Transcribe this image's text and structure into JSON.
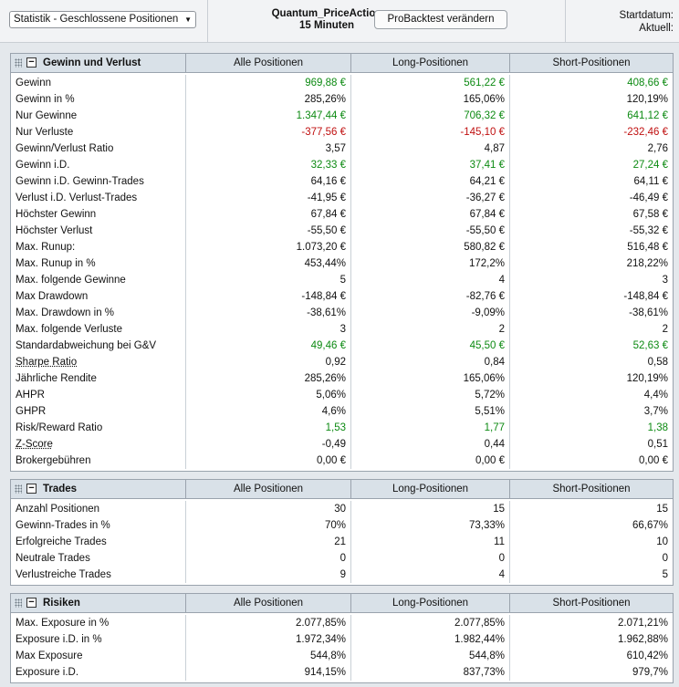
{
  "toolbar": {
    "select_value": "Statistik - Geschlossene Positionen",
    "strategy_name": "Quantum_PriceAction",
    "timeframe": "15 Minuten",
    "button_label": "ProBacktest verändern",
    "start_label": "Startdatum:",
    "current_label": "Aktuell:"
  },
  "colors": {
    "positive": "#0c8a12",
    "negative": "#c01010",
    "header_bg": "#d9e1e8"
  },
  "icons": {
    "grip": "grip-icon",
    "collapse": "collapse-minus-icon",
    "dropdown": "chevron-down-icon"
  },
  "panels": [
    {
      "title": "Gewinn und Verlust",
      "columns": [
        "Alle Positionen",
        "Long-Positionen",
        "Short-Positionen"
      ],
      "rows": [
        {
          "label": "Gewinn",
          "values": [
            "969,88 €",
            "561,22 €",
            "408,66 €"
          ],
          "tone": "pos"
        },
        {
          "label": "Gewinn in %",
          "values": [
            "285,26%",
            "165,06%",
            "120,19%"
          ]
        },
        {
          "label": "Nur Gewinne",
          "values": [
            "1.347,44 €",
            "706,32 €",
            "641,12 €"
          ],
          "tone": "pos"
        },
        {
          "label": "Nur Verluste",
          "values": [
            "-377,56 €",
            "-145,10 €",
            "-232,46 €"
          ],
          "tone": "neg"
        },
        {
          "label": "Gewinn/Verlust Ratio",
          "values": [
            "3,57",
            "4,87",
            "2,76"
          ]
        },
        {
          "label": "Gewinn i.D.",
          "values": [
            "32,33 €",
            "37,41 €",
            "27,24 €"
          ],
          "tone": "pos"
        },
        {
          "label": "Gewinn i.D. Gewinn-Trades",
          "values": [
            "64,16 €",
            "64,21 €",
            "64,11 €"
          ]
        },
        {
          "label": "Verlust i.D. Verlust-Trades",
          "values": [
            "-41,95 €",
            "-36,27 €",
            "-46,49 €"
          ]
        },
        {
          "label": "Höchster Gewinn",
          "values": [
            "67,84 €",
            "67,84 €",
            "67,58 €"
          ]
        },
        {
          "label": "Höchster Verlust",
          "values": [
            "-55,50 €",
            "-55,50 €",
            "-55,32 €"
          ]
        },
        {
          "label": "Max. Runup:",
          "values": [
            "1.073,20 €",
            "580,82 €",
            "516,48 €"
          ]
        },
        {
          "label": "Max. Runup in %",
          "values": [
            "453,44%",
            "172,2%",
            "218,22%"
          ]
        },
        {
          "label": "Max. folgende Gewinne",
          "values": [
            "5",
            "4",
            "3"
          ]
        },
        {
          "label": "Max Drawdown",
          "values": [
            "-148,84 €",
            "-82,76 €",
            "-148,84 €"
          ]
        },
        {
          "label": "Max. Drawdown in %",
          "values": [
            "-38,61%",
            "-9,09%",
            "-38,61%"
          ]
        },
        {
          "label": "Max. folgende Verluste",
          "values": [
            "3",
            "2",
            "2"
          ]
        },
        {
          "label": "Standardabweichung bei G&V",
          "values": [
            "49,46 €",
            "45,50 €",
            "52,63 €"
          ],
          "tone": "pos"
        },
        {
          "label": "Sharpe Ratio",
          "values": [
            "0,92",
            "0,84",
            "0,58"
          ],
          "link": true
        },
        {
          "label": "Jährliche Rendite",
          "values": [
            "285,26%",
            "165,06%",
            "120,19%"
          ]
        },
        {
          "label": "AHPR",
          "values": [
            "5,06%",
            "5,72%",
            "4,4%"
          ]
        },
        {
          "label": "GHPR",
          "values": [
            "4,6%",
            "5,51%",
            "3,7%"
          ]
        },
        {
          "label": "Risk/Reward Ratio",
          "values": [
            "1,53",
            "1,77",
            "1,38"
          ],
          "tone": "pos"
        },
        {
          "label": "Z-Score",
          "values": [
            "-0,49",
            "0,44",
            "0,51"
          ],
          "link": true
        },
        {
          "label": "Brokergebühren",
          "values": [
            "0,00 €",
            "0,00 €",
            "0,00 €"
          ]
        }
      ]
    },
    {
      "title": "Trades",
      "columns": [
        "Alle Positionen",
        "Long-Positionen",
        "Short-Positionen"
      ],
      "rows": [
        {
          "label": "Anzahl Positionen",
          "values": [
            "30",
            "15",
            "15"
          ]
        },
        {
          "label": "Gewinn-Trades in %",
          "values": [
            "70%",
            "73,33%",
            "66,67%"
          ]
        },
        {
          "label": "Erfolgreiche Trades",
          "values": [
            "21",
            "11",
            "10"
          ]
        },
        {
          "label": "Neutrale Trades",
          "values": [
            "0",
            "0",
            "0"
          ]
        },
        {
          "label": "Verlustreiche Trades",
          "values": [
            "9",
            "4",
            "5"
          ]
        }
      ]
    },
    {
      "title": "Risiken",
      "columns": [
        "Alle Positionen",
        "Long-Positionen",
        "Short-Positionen"
      ],
      "rows": [
        {
          "label": "Max. Exposure in %",
          "values": [
            "2.077,85%",
            "2.077,85%",
            "2.071,21%"
          ]
        },
        {
          "label": "Exposure i.D. in %",
          "values": [
            "1.972,34%",
            "1.982,44%",
            "1.962,88%"
          ]
        },
        {
          "label": "Max Exposure",
          "values": [
            "544,8%",
            "544,8%",
            "610,42%"
          ]
        },
        {
          "label": "Exposure i.D.",
          "values": [
            "914,15%",
            "837,73%",
            "979,7%"
          ]
        }
      ]
    }
  ]
}
